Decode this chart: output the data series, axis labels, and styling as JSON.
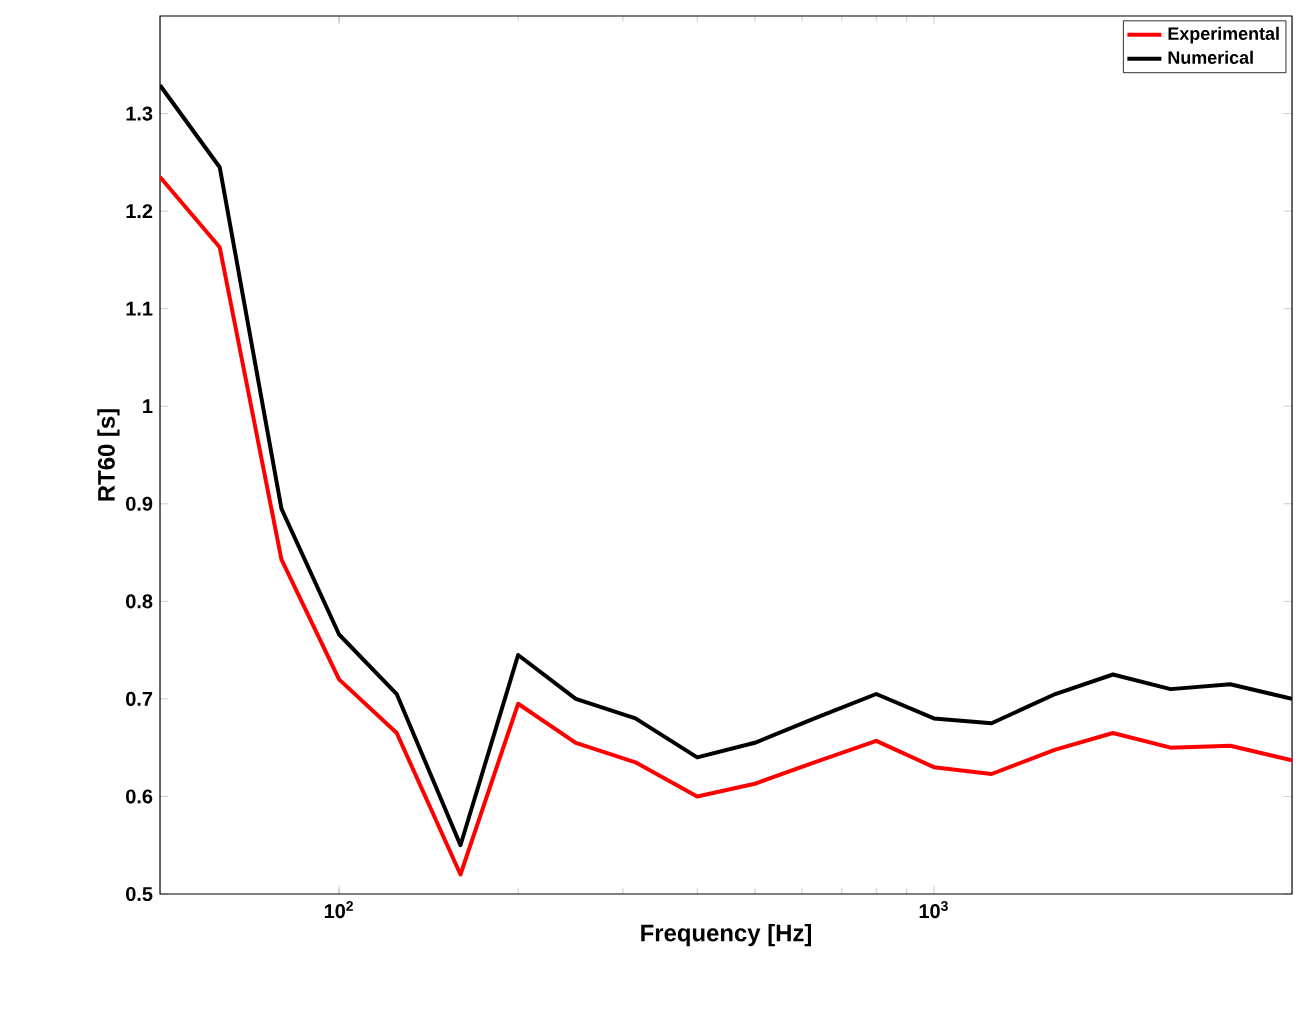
{
  "chart_data": {
    "type": "line",
    "xlabel": "Frequency [Hz]",
    "ylabel": "RT60 [s]",
    "log": "x",
    "x": [
      50,
      63,
      80,
      100,
      125,
      160,
      200,
      250,
      315,
      400,
      500,
      630,
      800,
      1000,
      1250,
      1600,
      2000,
      2500,
      3150,
      4000
    ],
    "series": [
      {
        "name": "Experimental",
        "color": "#ff0000",
        "values": [
          1.235,
          1.163,
          0.843,
          0.72,
          0.665,
          0.52,
          0.695,
          0.655,
          0.635,
          0.6,
          0.613,
          0.635,
          0.657,
          0.63,
          0.623,
          0.648,
          0.665,
          0.65,
          0.652,
          0.637
        ]
      },
      {
        "name": "Numerical",
        "color": "#000000",
        "values": [
          1.329,
          1.245,
          0.895,
          0.766,
          0.705,
          0.55,
          0.745,
          0.7,
          0.68,
          0.64,
          0.655,
          0.68,
          0.705,
          0.68,
          0.675,
          0.705,
          0.725,
          0.71,
          0.715,
          0.7
        ]
      }
    ],
    "xlim": [
      50,
      4000
    ],
    "ylim": [
      0.5,
      1.4
    ],
    "xticks": [
      {
        "value": 100,
        "label": "10$^{2}$"
      },
      {
        "value": 1000,
        "label": "10$^{3}$"
      }
    ],
    "yticks": [
      0.5,
      0.6,
      0.7,
      0.8,
      0.9,
      1,
      1.1,
      1.2,
      1.3
    ],
    "legend": "top right",
    "line_style": "solid",
    "marker": "none",
    "grid": false
  }
}
